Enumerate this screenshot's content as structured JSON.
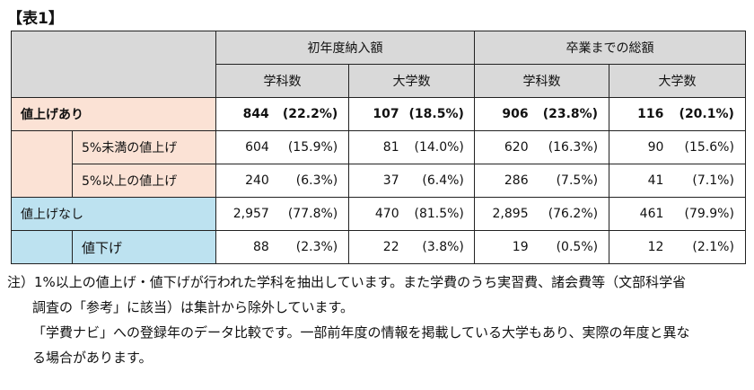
{
  "caption": "【表1】",
  "header": {
    "group1": "初年度納入額",
    "group2": "卒業までの総額",
    "col_department": "学科数",
    "col_university": "大学数"
  },
  "rows": [
    {
      "label": "値上げあり",
      "cells": [
        {
          "n": "844",
          "p": "(22.2%)"
        },
        {
          "n": "107",
          "p": "(18.5%)"
        },
        {
          "n": "906",
          "p": "(23.8%)"
        },
        {
          "n": "116",
          "p": "(20.1%)"
        }
      ]
    },
    {
      "label": "5%未満の値上げ",
      "cells": [
        {
          "n": "604",
          "p": "(15.9%)"
        },
        {
          "n": "81",
          "p": "(14.0%)"
        },
        {
          "n": "620",
          "p": "(16.3%)"
        },
        {
          "n": "90",
          "p": "(15.6%)"
        }
      ]
    },
    {
      "label": "5%以上の値上げ",
      "cells": [
        {
          "n": "240",
          "p": "(6.3%)"
        },
        {
          "n": "37",
          "p": "(6.4%)"
        },
        {
          "n": "286",
          "p": "(7.5%)"
        },
        {
          "n": "41",
          "p": "(7.1%)"
        }
      ]
    },
    {
      "label": "値上げなし",
      "cells": [
        {
          "n": "2,957",
          "p": "(77.8%)"
        },
        {
          "n": "470",
          "p": "(81.5%)"
        },
        {
          "n": "2,895",
          "p": "(76.2%)"
        },
        {
          "n": "461",
          "p": "(79.9%)"
        }
      ]
    },
    {
      "label": "値下げ",
      "cells": [
        {
          "n": "88",
          "p": "(2.3%)"
        },
        {
          "n": "22",
          "p": "(3.8%)"
        },
        {
          "n": "19",
          "p": "(0.5%)"
        },
        {
          "n": "12",
          "p": "(2.1%)"
        }
      ]
    }
  ],
  "notes": [
    "注）1%以上の値上げ・値下げが行われた学科を抽出しています。また学費のうち実習費、諸会費等（文部科学省",
    "調査の「参考」に該当）は集計から除外しています。",
    "「学費ナビ」への登録年のデータ比較です。一部前年度の情報を掲載している大学もあり、実際の年度と異な",
    "る場合があります。"
  ]
}
